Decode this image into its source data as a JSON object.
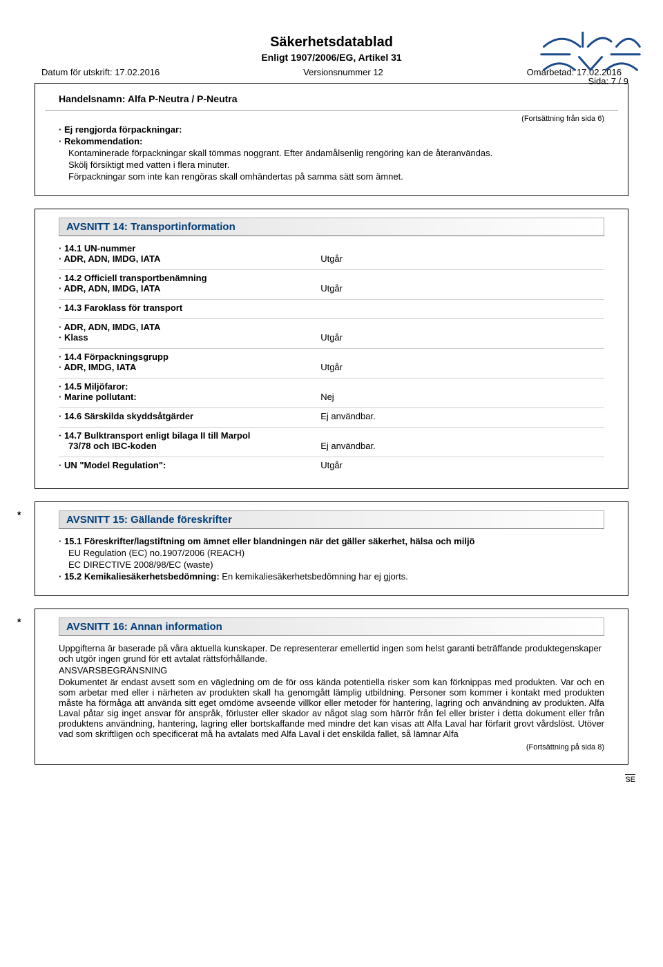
{
  "page": {
    "number_label": "Sida: 7 / 9",
    "logo_stroke": "#1a4a8a"
  },
  "header": {
    "title": "Säkerhetsdatablad",
    "subtitle": "Enligt 1907/2006/EG, Artikel 31",
    "print_date": "Datum för utskrift: 17.02.2016",
    "version": "Versionsnummer 12",
    "revised": "Omarbetad: 17.02.2016"
  },
  "box1": {
    "product": "Handelsnamn: Alfa P-Neutra / P-Neutra",
    "cont_from": "(Fortsättning från sida 6)",
    "l1": "Ej rengjorda förpackningar:",
    "l2": "Rekommendation:",
    "p1": "Kontaminerade förpackningar skall tömmas noggrant. Efter ändamålsenlig rengöring kan de återanvändas.",
    "p2": "Skölj försiktigt med vatten i flera minuter.",
    "p3": "Förpackningar som inte kan rengöras skall omhändertas på samma sätt som ämnet."
  },
  "box2": {
    "section_title": "AVSNITT 14: Transportinformation",
    "groups": [
      {
        "labels": [
          "14.1 UN-nummer",
          "ADR, ADN, IMDG, IATA"
        ],
        "value": "Utgår"
      },
      {
        "labels": [
          "14.2 Officiell transportbenämning",
          "ADR, ADN, IMDG, IATA"
        ],
        "value": "Utgår"
      },
      {
        "labels": [
          "14.3 Faroklass för transport"
        ],
        "value": ""
      },
      {
        "labels": [
          "ADR, ADN, IMDG, IATA",
          "Klass"
        ],
        "value": "Utgår"
      },
      {
        "labels": [
          "14.4 Förpackningsgrupp",
          "ADR, IMDG, IATA"
        ],
        "value": "Utgår"
      },
      {
        "labels": [
          "14.5 Miljöfaror:",
          "Marine pollutant:"
        ],
        "value": "Nej"
      },
      {
        "labels": [
          "14.6 Särskilda skyddsåtgärder"
        ],
        "value": "Ej användbar."
      },
      {
        "labels": [
          "14.7 Bulktransport enligt bilaga II till Marpol",
          "73/78 och IBC-koden"
        ],
        "value": "Ej användbar.",
        "nobullet_second": true
      },
      {
        "labels": [
          "UN \"Model Regulation\":"
        ],
        "value": "Utgår"
      }
    ]
  },
  "box3": {
    "section_title": "AVSNITT 15: Gällande föreskrifter",
    "l1": "15.1 Föreskrifter/lagstiftning om ämnet eller blandningen när det gäller säkerhet, hälsa och miljö",
    "p1": "EU Regulation (EC) no.1907/2006 (REACH)",
    "p2": "EC DIRECTIVE 2008/98/EC (waste)",
    "l2_label": "15.2 Kemikaliesäkerhetsbedömning:",
    "l2_text": " En kemikaliesäkerhetsbedömning har ej gjorts."
  },
  "box4": {
    "section_title": "AVSNITT 16: Annan information",
    "p1": "Uppgifterna är baserade på våra aktuella kunskaper. De representerar emellertid ingen som helst garanti beträffande produktegenskaper och utgör ingen grund för ett avtalat rättsförhållande.",
    "p2": "ANSVARSBEGRÄNSNING",
    "p3": "Dokumentet är endast avsett som en vägledning om de för oss kända potentiella risker som kan förknippas med produkten. Var och en som arbetar med eller i närheten av produkten skall ha genomgått lämplig utbildning. Personer som kommer i kontakt med produkten måste ha förmåga att använda sitt eget omdöme avseende villkor eller metoder för hantering, lagring och användning av produkten. Alfa Laval påtar sig inget ansvar för anspråk, förluster eller skador av något slag som härrör från fel eller brister i detta dokument eller från produktens användning, hantering, lagring eller bortskaffande med mindre det kan visas att Alfa Laval har förfarit grovt vårdslöst. Utöver vad som skriftligen och specificerat må ha avtalats med Alfa Laval i det enskilda fallet, så lämnar Alfa",
    "cont_next": "(Fortsättning på sida 8)"
  },
  "footer": {
    "se": "SE"
  }
}
